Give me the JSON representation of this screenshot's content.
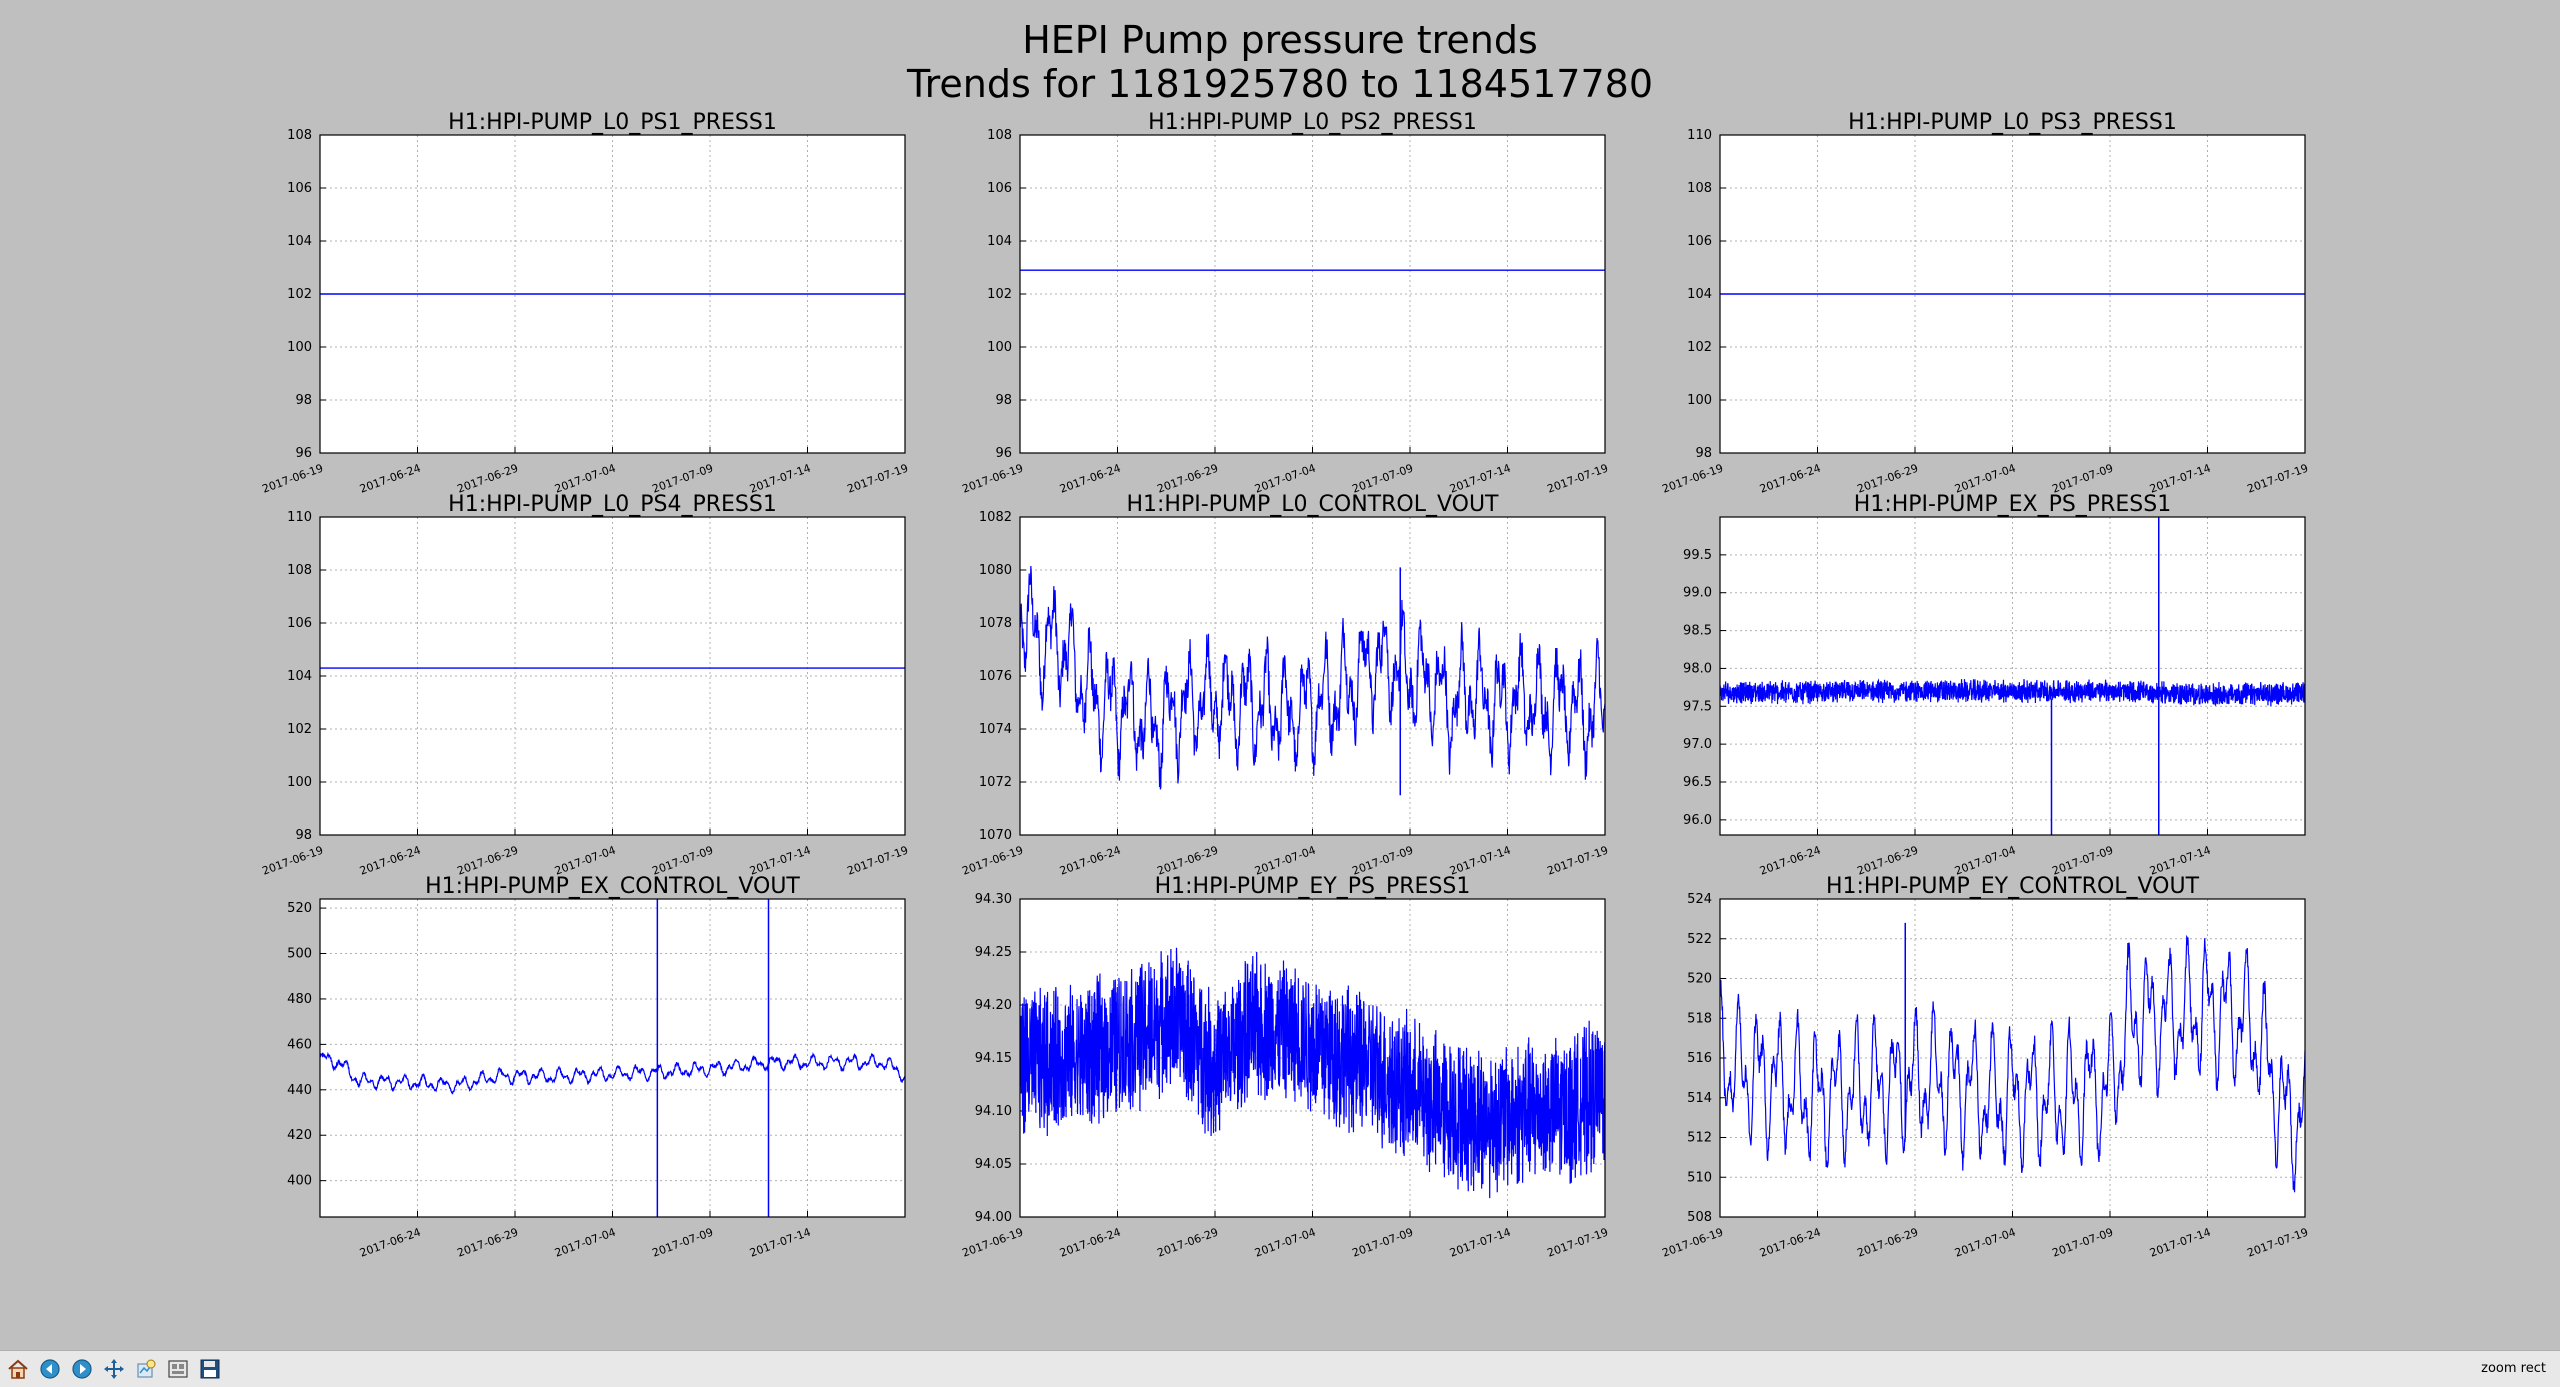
{
  "figure": {
    "title_line1": "HEPI Pump pressure trends",
    "title_line2": "Trends for 1181925780 to 1184517780"
  },
  "toolbar": {
    "buttons": [
      {
        "name": "home-button",
        "icon": "home-icon",
        "label": "Home"
      },
      {
        "name": "back-button",
        "icon": "arrow-left-icon",
        "label": "Back"
      },
      {
        "name": "forward-button",
        "icon": "arrow-right-icon",
        "label": "Forward"
      },
      {
        "name": "pan-button",
        "icon": "move-icon",
        "label": "Pan"
      },
      {
        "name": "zoom-button",
        "icon": "zoom-icon",
        "label": "Zoom"
      },
      {
        "name": "subplots-button",
        "icon": "subplots-icon",
        "label": "Subplots"
      },
      {
        "name": "save-button",
        "icon": "floppy-disk-icon",
        "label": "Save"
      }
    ],
    "status_text": "zoom rect"
  },
  "colors": {
    "line": "#0000ff",
    "axes_bg": "#ffffff",
    "figure_bg": "#bfbfbf",
    "grid": "#b0b0b0"
  },
  "chart_data": [
    {
      "type": "line",
      "title": "H1:HPI-PUMP_L0_PS1_PRESS1",
      "xlim": [
        "2017-06-19",
        "2017-07-19"
      ],
      "xticks": [
        "2017-06-19",
        "2017-06-24",
        "2017-06-29",
        "2017-07-04",
        "2017-07-09",
        "2017-07-14",
        "2017-07-19"
      ],
      "ylim": [
        96,
        108
      ],
      "yticks": [
        "96",
        "98",
        "100",
        "102",
        "104",
        "106",
        "108"
      ],
      "grid": true,
      "style": "flat",
      "level": 102.0
    },
    {
      "type": "line",
      "title": "H1:HPI-PUMP_L0_PS2_PRESS1",
      "xlim": [
        "2017-06-19",
        "2017-07-19"
      ],
      "xticks": [
        "2017-06-19",
        "2017-06-24",
        "2017-06-29",
        "2017-07-04",
        "2017-07-09",
        "2017-07-14",
        "2017-07-19"
      ],
      "ylim": [
        96,
        108
      ],
      "yticks": [
        "96",
        "98",
        "100",
        "102",
        "104",
        "106",
        "108"
      ],
      "grid": true,
      "style": "flat",
      "level": 102.9
    },
    {
      "type": "line",
      "title": "H1:HPI-PUMP_L0_PS3_PRESS1",
      "xlim": [
        "2017-06-19",
        "2017-07-19"
      ],
      "xticks": [
        "2017-06-19",
        "2017-06-24",
        "2017-06-29",
        "2017-07-04",
        "2017-07-09",
        "2017-07-14",
        "2017-07-19"
      ],
      "ylim": [
        98,
        110
      ],
      "yticks": [
        "98",
        "100",
        "102",
        "104",
        "106",
        "108",
        "110"
      ],
      "grid": true,
      "style": "flat",
      "level": 104.0
    },
    {
      "type": "line",
      "title": "H1:HPI-PUMP_L0_PS4_PRESS1",
      "xlim": [
        "2017-06-19",
        "2017-07-19"
      ],
      "xticks": [
        "2017-06-19",
        "2017-06-24",
        "2017-06-29",
        "2017-07-04",
        "2017-07-09",
        "2017-07-14",
        "2017-07-19"
      ],
      "ylim": [
        98,
        110
      ],
      "yticks": [
        "98",
        "100",
        "102",
        "104",
        "106",
        "108",
        "110"
      ],
      "grid": true,
      "style": "flat",
      "level": 104.3
    },
    {
      "type": "line",
      "title": "H1:HPI-PUMP_L0_CONTROL_VOUT",
      "xlim": [
        "2017-06-19",
        "2017-07-19"
      ],
      "xticks": [
        "2017-06-19",
        "2017-06-24",
        "2017-06-29",
        "2017-07-04",
        "2017-07-09",
        "2017-07-14",
        "2017-07-19"
      ],
      "ylim": [
        1070,
        1082
      ],
      "yticks": [
        "1070",
        "1072",
        "1074",
        "1076",
        "1078",
        "1080",
        "1082"
      ],
      "grid": true,
      "style": "wavy",
      "x_days": [
        0,
        1,
        2,
        3,
        4,
        5,
        6,
        7,
        8,
        9,
        10,
        11,
        12,
        13,
        14,
        15,
        16,
        17,
        18,
        19,
        20,
        21,
        22,
        23,
        24,
        25,
        26,
        27,
        28,
        29,
        30
      ],
      "y_mid": [
        1078.5,
        1077.2,
        1077.3,
        1076.0,
        1075.0,
        1074.8,
        1074.5,
        1074.0,
        1074.8,
        1075.0,
        1075.2,
        1075.0,
        1074.9,
        1074.7,
        1074.5,
        1075.0,
        1075.2,
        1075.8,
        1076.5,
        1076.5,
        1076.0,
        1075.8,
        1074.8,
        1075.5,
        1075.0,
        1075.0,
        1075.2,
        1074.8,
        1075.0,
        1074.5,
        1075.0
      ],
      "amplitude": 2.2,
      "noise": 0.7,
      "spikes": [
        {
          "x": 19.5,
          "min": 1071.5,
          "max": 1080.1
        }
      ]
    },
    {
      "type": "line",
      "title": "H1:HPI-PUMP_EX_PS_PRESS1",
      "xlim": [
        "2017-06-19",
        "2017-07-19"
      ],
      "xticks": [
        "2017-06-24",
        "2017-06-29",
        "2017-07-04",
        "2017-07-09",
        "2017-07-14"
      ],
      "ylim": [
        95.8,
        100.0
      ],
      "yticks": [
        "96.0",
        "96.5",
        "97.0",
        "97.5",
        "98.0",
        "98.5",
        "99.0",
        "99.5"
      ],
      "grid": true,
      "style": "band",
      "x_days": [
        0,
        10,
        20,
        25,
        30
      ],
      "y_mid": [
        97.68,
        97.7,
        97.7,
        97.65,
        97.67
      ],
      "amplitude": 0.12,
      "noise": 0.05,
      "spikes": [
        {
          "x": 17.0,
          "min": 95.8,
          "max": 97.6
        },
        {
          "x": 22.5,
          "min": 95.8,
          "max": 100.0
        }
      ]
    },
    {
      "type": "line",
      "title": "H1:HPI-PUMP_EX_CONTROL_VOUT",
      "xlim": [
        "2017-06-19",
        "2017-07-19"
      ],
      "xticks": [
        "2017-06-24",
        "2017-06-29",
        "2017-07-04",
        "2017-07-09",
        "2017-07-14"
      ],
      "ylim": [
        384,
        524
      ],
      "yticks": [
        "400",
        "420",
        "440",
        "460",
        "480",
        "500",
        "520"
      ],
      "grid": true,
      "style": "wavy",
      "x_days": [
        0,
        1,
        2,
        5,
        7,
        9,
        12,
        15,
        18,
        21,
        23,
        27,
        29,
        30
      ],
      "y_mid": [
        454,
        452,
        444,
        443,
        442,
        446,
        446,
        447,
        448,
        450,
        452,
        452,
        452,
        446
      ],
      "amplitude": 3.5,
      "noise": 0.8,
      "spikes": [
        {
          "x": 17.3,
          "min": 384,
          "max": 524
        },
        {
          "x": 23.0,
          "min": 384,
          "max": 524
        }
      ]
    },
    {
      "type": "line",
      "title": "H1:HPI-PUMP_EY_PS_PRESS1",
      "xlim": [
        "2017-06-19",
        "2017-07-19"
      ],
      "xticks": [
        "2017-06-19",
        "2017-06-24",
        "2017-06-29",
        "2017-07-04",
        "2017-07-09",
        "2017-07-14",
        "2017-07-19"
      ],
      "ylim": [
        94.0,
        94.3
      ],
      "yticks": [
        "94.00",
        "94.05",
        "94.10",
        "94.15",
        "94.20",
        "94.25",
        "94.30"
      ],
      "grid": true,
      "style": "band",
      "x_days": [
        0,
        3,
        6,
        8,
        10,
        12,
        15,
        18,
        20,
        22,
        24,
        26,
        28,
        30
      ],
      "y_mid": [
        94.145,
        94.15,
        94.17,
        94.19,
        94.14,
        94.18,
        94.165,
        94.14,
        94.12,
        94.1,
        94.09,
        94.1,
        94.1,
        94.12
      ],
      "amplitude": 0.06,
      "noise": 0.015,
      "spikes": []
    },
    {
      "type": "line",
      "title": "H1:HPI-PUMP_EY_CONTROL_VOUT",
      "xlim": [
        "2017-06-19",
        "2017-07-19"
      ],
      "xticks": [
        "2017-06-19",
        "2017-06-24",
        "2017-06-29",
        "2017-07-04",
        "2017-07-09",
        "2017-07-14",
        "2017-07-19"
      ],
      "ylim": [
        508,
        524
      ],
      "yticks": [
        "508",
        "510",
        "512",
        "514",
        "516",
        "518",
        "520",
        "522",
        "524"
      ],
      "grid": true,
      "style": "wavy",
      "x_days": [
        0,
        2,
        5,
        8,
        11,
        14,
        17,
        20,
        21,
        23,
        25,
        27,
        28,
        29,
        30
      ],
      "y_mid": [
        516,
        515,
        514,
        514.5,
        515,
        514,
        514,
        514.5,
        518,
        518,
        518.5,
        518,
        516,
        513,
        513
      ],
      "amplitude": 3.8,
      "noise": 0.5,
      "spikes": [
        {
          "x": 9.5,
          "min": 512,
          "max": 522.8
        }
      ]
    }
  ]
}
